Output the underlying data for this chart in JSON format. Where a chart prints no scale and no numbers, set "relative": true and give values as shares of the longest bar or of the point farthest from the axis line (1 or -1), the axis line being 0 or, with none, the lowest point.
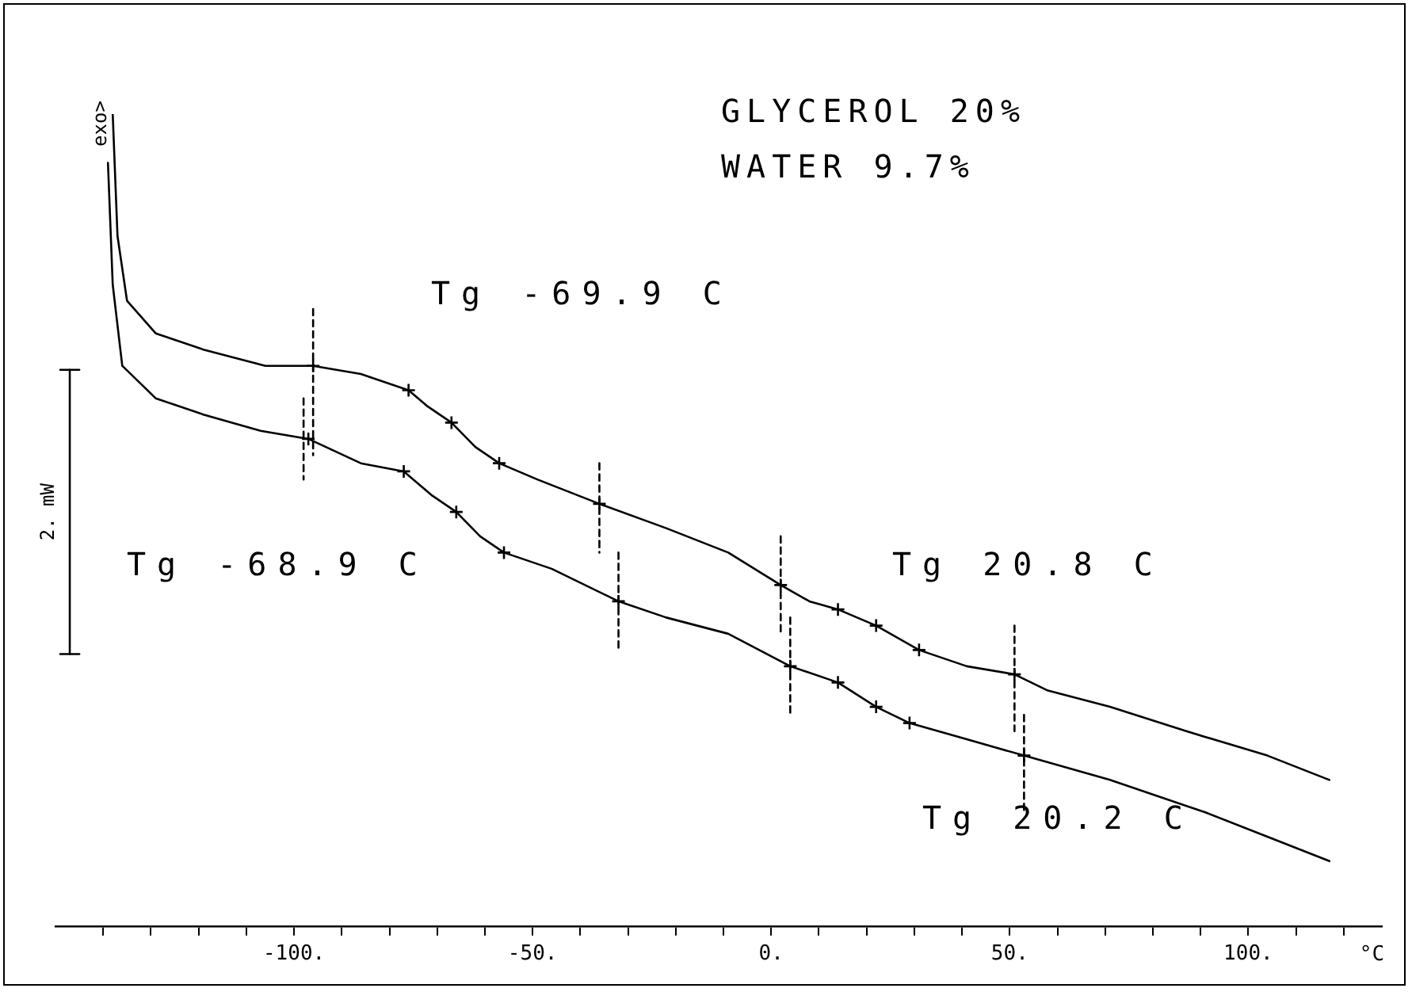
{
  "chart_data": {
    "type": "line",
    "relative": true,
    "xlabel": "°C",
    "xlim": [
      -150,
      128
    ],
    "xticks": [
      {
        "value": -140,
        "label": null
      },
      {
        "value": -130,
        "label": null
      },
      {
        "value": -120,
        "label": null
      },
      {
        "value": -110,
        "label": null
      },
      {
        "value": -100,
        "label": "-100."
      },
      {
        "value": -90,
        "label": null
      },
      {
        "value": -80,
        "label": null
      },
      {
        "value": -70,
        "label": null
      },
      {
        "value": -60,
        "label": null
      },
      {
        "value": -50,
        "label": "-50."
      },
      {
        "value": -40,
        "label": null
      },
      {
        "value": -30,
        "label": null
      },
      {
        "value": -20,
        "label": null
      },
      {
        "value": -10,
        "label": null
      },
      {
        "value": 0,
        "label": "0."
      },
      {
        "value": 10,
        "label": null
      },
      {
        "value": 20,
        "label": null
      },
      {
        "value": 30,
        "label": null
      },
      {
        "value": 40,
        "label": null
      },
      {
        "value": 50,
        "label": "50."
      },
      {
        "value": 60,
        "label": null
      },
      {
        "value": 70,
        "label": null
      },
      {
        "value": 80,
        "label": null
      },
      {
        "value": 90,
        "label": null
      },
      {
        "value": 100,
        "label": "100."
      },
      {
        "value": 110,
        "label": null
      },
      {
        "value": 120,
        "label": null
      }
    ],
    "grid": false,
    "legend": false,
    "marker": "none",
    "line_style": "solid",
    "annotations": [
      "GLYCEROL 20%",
      "WATER 9.7%",
      "exo>",
      "Tg -69.9 C",
      "Tg -68.9 C",
      "Tg 20.8 C",
      "Tg 20.2 C"
    ],
    "series": [
      {
        "name": "2. mW",
        "color": "#000000",
        "x": [
          -147,
          -147
        ],
        "values": [
          0.685,
          0.335
        ]
      },
      {
        "color": "#000000",
        "x": [
          -149,
          -145
        ],
        "values": [
          0.685,
          0.685
        ]
      },
      {
        "color": "#000000",
        "x": [
          -149,
          -145
        ],
        "values": [
          0.335,
          0.335
        ]
      },
      {
        "color": "#000000",
        "x": [
          -138,
          -137,
          -135,
          -129,
          -119,
          -106,
          -96,
          -86,
          -76,
          -72,
          -67,
          -62,
          -57,
          -49,
          -36,
          -22,
          -9,
          2,
          8,
          14,
          22,
          31,
          41,
          51,
          58,
          71,
          87,
          104,
          117
        ],
        "values": [
          1.0,
          0.85,
          0.77,
          0.73,
          0.71,
          0.69,
          0.69,
          0.68,
          0.66,
          0.64,
          0.62,
          0.59,
          0.57,
          0.55,
          0.52,
          0.49,
          0.46,
          0.42,
          0.4,
          0.39,
          0.37,
          0.34,
          0.32,
          0.31,
          0.29,
          0.27,
          0.24,
          0.21,
          0.18
        ]
      },
      {
        "color": "#000000",
        "x": [
          -139,
          -138,
          -136,
          -129,
          -119,
          -107,
          -97,
          -86,
          -77,
          -71,
          -66,
          -61,
          -56,
          -46,
          -32,
          -22,
          -9,
          4,
          14,
          22,
          29,
          41,
          53,
          71,
          91,
          104,
          117
        ],
        "values": [
          0.94,
          0.79,
          0.69,
          0.65,
          0.63,
          0.61,
          0.6,
          0.57,
          0.56,
          0.53,
          0.51,
          0.48,
          0.46,
          0.44,
          0.4,
          0.38,
          0.36,
          0.32,
          0.3,
          0.27,
          0.25,
          0.23,
          0.21,
          0.18,
          0.14,
          0.11,
          0.08
        ]
      },
      {
        "type": "scatter",
        "marker": "cross",
        "color": "#000000",
        "x": [
          -96,
          -76,
          -67,
          -57,
          -36,
          2,
          14,
          22,
          31,
          51
        ],
        "values": [
          0.69,
          0.66,
          0.62,
          0.57,
          0.52,
          0.42,
          0.39,
          0.37,
          0.34,
          0.31
        ]
      },
      {
        "type": "scatter",
        "marker": "cross",
        "color": "#000000",
        "x": [
          -97,
          -77,
          -66,
          -56,
          -32,
          4,
          14,
          22,
          29,
          53
        ],
        "values": [
          0.6,
          0.56,
          0.51,
          0.46,
          0.4,
          0.32,
          0.3,
          0.27,
          0.25,
          0.21
        ]
      },
      {
        "line_style": "dashed",
        "color": "#000000",
        "x": [
          -96,
          -96
        ],
        "values": [
          0.76,
          0.58
        ]
      },
      {
        "line_style": "dashed",
        "color": "#000000",
        "x": [
          -36,
          -36
        ],
        "values": [
          0.57,
          0.46
        ]
      },
      {
        "line_style": "dashed",
        "color": "#000000",
        "x": [
          2,
          2
        ],
        "values": [
          0.48,
          0.36
        ]
      },
      {
        "line_style": "dashed",
        "color": "#000000",
        "x": [
          51,
          51
        ],
        "values": [
          0.37,
          0.24
        ]
      },
      {
        "line_style": "dashed",
        "color": "#000000",
        "x": [
          -98,
          -98
        ],
        "values": [
          0.65,
          0.55
        ]
      },
      {
        "line_style": "dashed",
        "color": "#000000",
        "x": [
          -32,
          -32
        ],
        "values": [
          0.46,
          0.34
        ]
      },
      {
        "line_style": "dashed",
        "color": "#000000",
        "x": [
          4,
          4
        ],
        "values": [
          0.38,
          0.26
        ]
      },
      {
        "line_style": "dashed",
        "color": "#000000",
        "x": [
          53,
          53
        ],
        "values": [
          0.26,
          0.14
        ]
      }
    ]
  }
}
